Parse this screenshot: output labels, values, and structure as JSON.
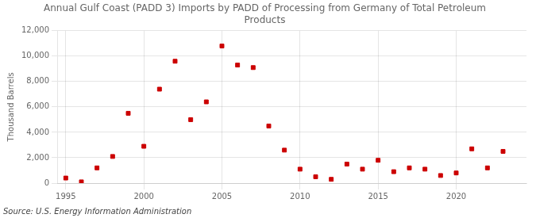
{
  "chart_data": {
    "type": "scatter",
    "title": "Annual Gulf Coast (PADD 3) Imports by PADD of Processing from Germany of Total Petroleum\nProducts",
    "y_label": "Thousand Barrels",
    "annotations": [
      "Source: U.S. Energy Information Administration"
    ],
    "x": [
      1995,
      1996,
      1997,
      1998,
      1999,
      2000,
      2001,
      2002,
      2003,
      2004,
      2005,
      2006,
      2007,
      2008,
      2009,
      2010,
      2011,
      2012,
      2013,
      2014,
      2015,
      2016,
      2017,
      2018,
      2019,
      2020,
      2021,
      2022,
      2023
    ],
    "values": [
      400,
      100,
      1200,
      2100,
      5500,
      2900,
      7400,
      9600,
      5000,
      6400,
      10800,
      9300,
      9100,
      4500,
      2600,
      1100,
      500,
      300,
      1500,
      1100,
      1800,
      900,
      1200,
      1100,
      600,
      800,
      2700,
      1200,
      2500
    ],
    "color": "#cc0000",
    "marker": "square",
    "xlim": [
      1994.5,
      2024.5
    ],
    "xticks": [
      1995,
      2000,
      2005,
      2010,
      2015,
      2020
    ],
    "ylim": [
      0,
      12000
    ],
    "yticks": [
      0,
      {
        "value": 2000,
        "label": "2,000"
      },
      {
        "value": 4000,
        "label": "4,000"
      },
      {
        "value": 6000,
        "label": "6,000"
      },
      {
        "value": 8000,
        "label": "8,000"
      },
      {
        "value": 10000,
        "label": "10,000"
      },
      {
        "value": 12000,
        "label": "12,000"
      }
    ],
    "grid": true
  }
}
